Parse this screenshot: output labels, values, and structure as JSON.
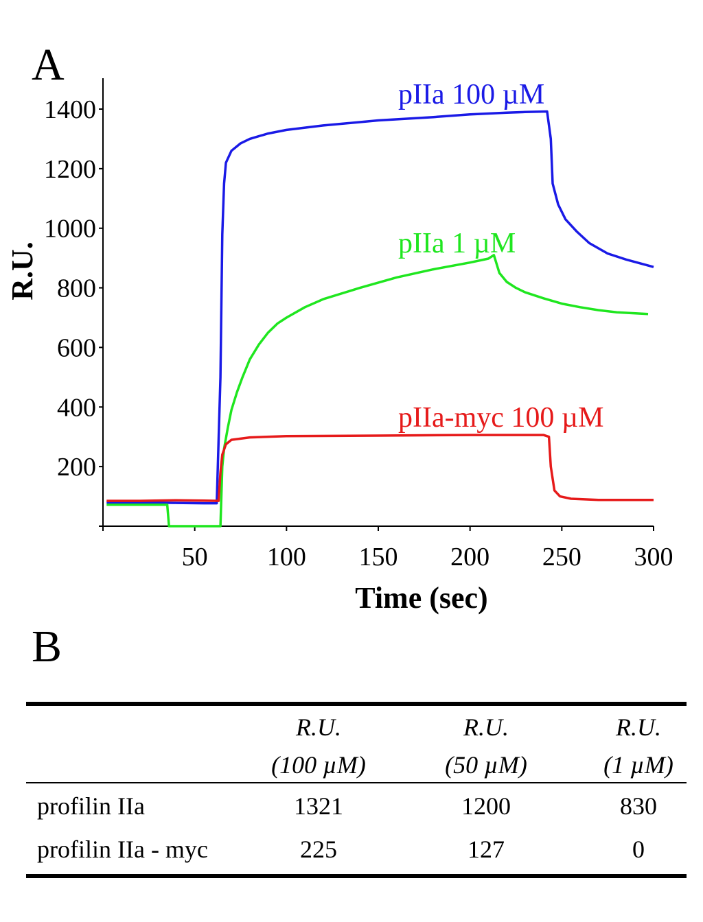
{
  "panels": {
    "a_label": "A",
    "b_label": "B"
  },
  "chart_data": {
    "type": "line",
    "xlabel": "Time (sec)",
    "ylabel": "R.U.",
    "xlim": [
      0,
      300
    ],
    "ylim": [
      0,
      1500
    ],
    "x_ticks": [
      50,
      100,
      150,
      200,
      250,
      300
    ],
    "y_ticks": [
      200,
      400,
      600,
      800,
      1000,
      1200,
      1400
    ],
    "grid": false,
    "legend": "labels placed next to curves",
    "series": [
      {
        "name": "pIIa 100 µM",
        "color": "#1a1ae6",
        "points": [
          [
            2,
            80
          ],
          [
            20,
            80
          ],
          [
            40,
            78
          ],
          [
            55,
            77
          ],
          [
            62,
            77
          ],
          [
            64,
            500
          ],
          [
            65,
            980
          ],
          [
            66,
            1150
          ],
          [
            67,
            1220
          ],
          [
            70,
            1260
          ],
          [
            75,
            1285
          ],
          [
            80,
            1300
          ],
          [
            90,
            1318
          ],
          [
            100,
            1330
          ],
          [
            120,
            1345
          ],
          [
            150,
            1362
          ],
          [
            180,
            1373
          ],
          [
            200,
            1382
          ],
          [
            220,
            1388
          ],
          [
            230,
            1390
          ],
          [
            242,
            1392
          ],
          [
            244,
            1300
          ],
          [
            245,
            1150
          ],
          [
            248,
            1080
          ],
          [
            252,
            1030
          ],
          [
            258,
            990
          ],
          [
            265,
            950
          ],
          [
            275,
            915
          ],
          [
            285,
            895
          ],
          [
            300,
            870
          ]
        ]
      },
      {
        "name": "pIIa 1 µM",
        "color": "#1fe61f",
        "points": [
          [
            2,
            72
          ],
          [
            20,
            72
          ],
          [
            35,
            72
          ],
          [
            36,
            0
          ],
          [
            64,
            0
          ],
          [
            65,
            200
          ],
          [
            66,
            260
          ],
          [
            68,
            330
          ],
          [
            70,
            390
          ],
          [
            73,
            450
          ],
          [
            76,
            500
          ],
          [
            80,
            560
          ],
          [
            85,
            610
          ],
          [
            90,
            650
          ],
          [
            95,
            680
          ],
          [
            100,
            700
          ],
          [
            110,
            735
          ],
          [
            120,
            762
          ],
          [
            140,
            800
          ],
          [
            160,
            835
          ],
          [
            180,
            862
          ],
          [
            200,
            885
          ],
          [
            210,
            898
          ],
          [
            213,
            910
          ],
          [
            216,
            850
          ],
          [
            220,
            820
          ],
          [
            225,
            800
          ],
          [
            230,
            785
          ],
          [
            240,
            765
          ],
          [
            250,
            747
          ],
          [
            260,
            735
          ],
          [
            270,
            725
          ],
          [
            280,
            718
          ],
          [
            297,
            712
          ]
        ]
      },
      {
        "name": "pIIa-myc 100 µM",
        "color": "#e61a1a",
        "points": [
          [
            2,
            85
          ],
          [
            20,
            85
          ],
          [
            40,
            87
          ],
          [
            55,
            86
          ],
          [
            63,
            85
          ],
          [
            64,
            180
          ],
          [
            65,
            240
          ],
          [
            67,
            275
          ],
          [
            70,
            290
          ],
          [
            80,
            298
          ],
          [
            100,
            302
          ],
          [
            150,
            304
          ],
          [
            200,
            306
          ],
          [
            240,
            306
          ],
          [
            243,
            300
          ],
          [
            244,
            200
          ],
          [
            246,
            120
          ],
          [
            249,
            100
          ],
          [
            255,
            92
          ],
          [
            270,
            88
          ],
          [
            300,
            88
          ]
        ]
      }
    ]
  },
  "table": {
    "headers": [
      {
        "line1": "R.U.",
        "line2": "(100 µM)"
      },
      {
        "line1": "R.U.",
        "line2": "(50 µM)"
      },
      {
        "line1": "R.U.",
        "line2": "(1 µM)"
      }
    ],
    "rows": [
      {
        "label": "profilin IIa",
        "values": [
          "1321",
          "1200",
          "830"
        ]
      },
      {
        "label": "profilin IIa - myc",
        "values": [
          "225",
          "127",
          "0"
        ]
      }
    ]
  }
}
